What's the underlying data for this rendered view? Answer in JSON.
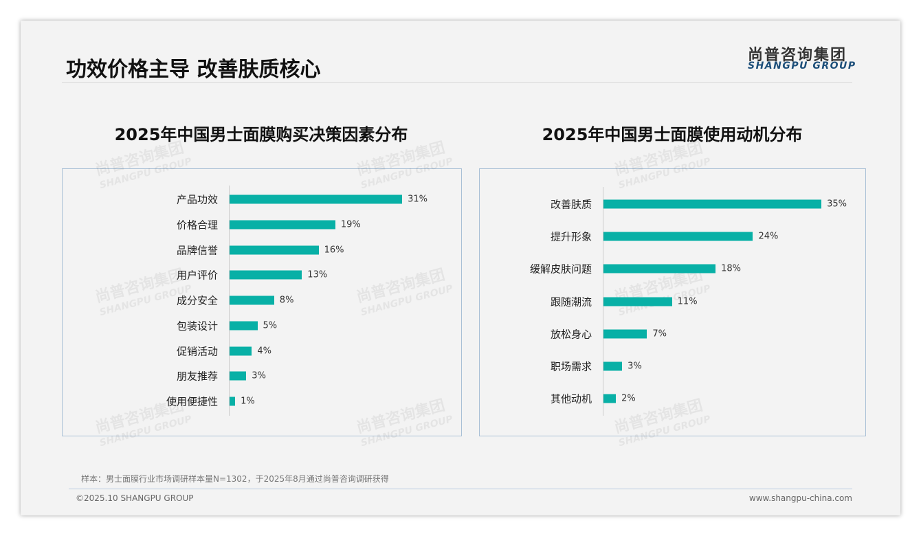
{
  "header": {
    "title": "功效价格主导 改善肤质核心",
    "logo_cn": "尚普咨询集团",
    "logo_en": "SHANGPU GROUP"
  },
  "watermark": {
    "cn": "尚普咨询集团",
    "en": "SHANGPU GROUP"
  },
  "chart_data": [
    {
      "type": "bar",
      "orientation": "horizontal",
      "title": "2025年中国男士面膜购买决策因素分布",
      "categories": [
        "产品功效",
        "价格合理",
        "品牌信誉",
        "用户评价",
        "成分安全",
        "包装设计",
        "促销活动",
        "朋友推荐",
        "使用便捷性"
      ],
      "values": [
        31,
        19,
        16,
        13,
        8,
        5,
        4,
        3,
        1
      ],
      "labels": [
        "31%",
        "19%",
        "16%",
        "13%",
        "8%",
        "5%",
        "4%",
        "3%",
        "1%"
      ],
      "unit": "%",
      "color": "#08b0a6"
    },
    {
      "type": "bar",
      "orientation": "horizontal",
      "title": "2025年中国男士面膜使用动机分布",
      "categories": [
        "改善肤质",
        "提升形象",
        "缓解皮肤问题",
        "跟随潮流",
        "放松身心",
        "职场需求",
        "其他动机"
      ],
      "values": [
        35,
        24,
        18,
        11,
        7,
        3,
        2
      ],
      "labels": [
        "35%",
        "24%",
        "18%",
        "11%",
        "7%",
        "3%",
        "2%"
      ],
      "unit": "%",
      "color": "#08b0a6"
    }
  ],
  "footer": {
    "note": "样本：男士面膜行业市场调研样本量N=1302，于2025年8月通过尚普咨询调研获得",
    "copyright": "©2025.10 SHANGPU GROUP",
    "website": "www.shangpu-china.com"
  }
}
